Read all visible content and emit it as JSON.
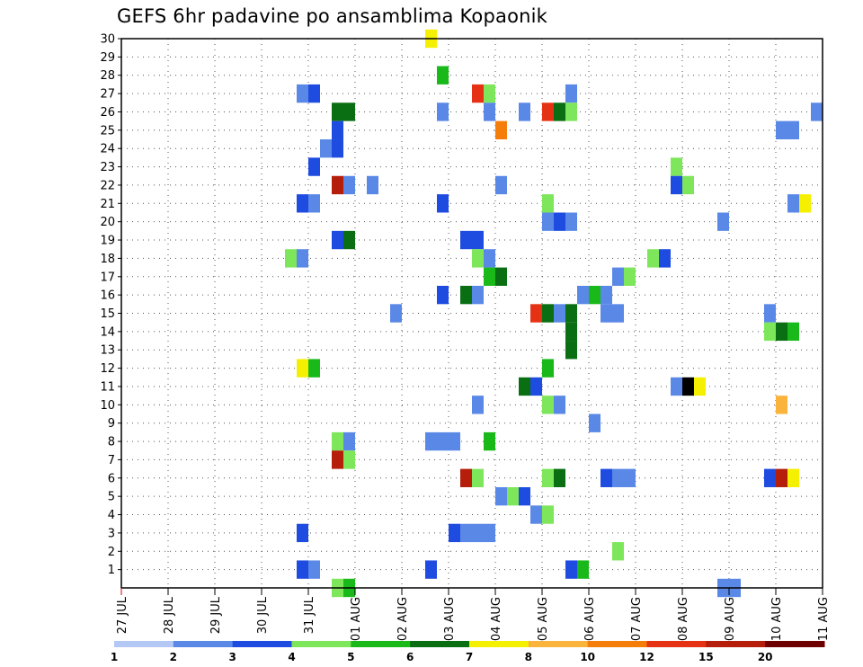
{
  "chart_data": {
    "type": "heatmap",
    "title": "GEFS 6hr padavine po ansamblima Kopaonik",
    "x_tick_labels": [
      "27 JUL",
      "28 JUL",
      "29 JUL",
      "30 JUL",
      "31 JUL",
      "01 AUG",
      "02 AUG",
      "03 AUG",
      "04 AUG",
      "05 AUG",
      "06 AUG",
      "07 AUG",
      "08 AUG",
      "09 AUG",
      "10 AUG",
      "11 AUG"
    ],
    "y_tick_labels": [
      "1",
      "2",
      "3",
      "4",
      "5",
      "6",
      "7",
      "8",
      "9",
      "10",
      "11",
      "12",
      "13",
      "14",
      "15",
      "16",
      "17",
      "18",
      "19",
      "20",
      "21",
      "22",
      "23",
      "24",
      "25",
      "26",
      "27",
      "28",
      "29",
      "30"
    ],
    "x_unit": "6-hour step",
    "x_range": [
      0,
      60
    ],
    "y_range": [
      0,
      30
    ],
    "grid": true,
    "legend_position": "bottom",
    "color_scale": {
      "labels": [
        "1",
        "2",
        "3",
        "4",
        "5",
        "6",
        "7",
        "8",
        "10",
        "12",
        "15",
        "20"
      ],
      "colors": [
        "#b4c8f5",
        "#5a88e6",
        "#1e4be0",
        "#7ee65a",
        "#19b919",
        "#0a6e12",
        "#f5f000",
        "#fab43c",
        "#f57d0a",
        "#e63214",
        "#b41e0a",
        "#6e0000"
      ]
    },
    "cells": [
      {
        "member": 30,
        "step": 26.5,
        "level": 6
      },
      {
        "member": 28,
        "step": 27.5,
        "level": 4
      },
      {
        "member": 27,
        "step": 15.5,
        "level": 1
      },
      {
        "member": 27,
        "step": 16.5,
        "level": 2
      },
      {
        "member": 27,
        "step": 30.5,
        "level": 9
      },
      {
        "member": 27,
        "step": 31.5,
        "level": 3
      },
      {
        "member": 27,
        "step": 38.5,
        "level": 1
      },
      {
        "member": 26,
        "step": 18.5,
        "level": 5
      },
      {
        "member": 26,
        "step": 19.5,
        "level": 5
      },
      {
        "member": 26,
        "step": 27.5,
        "level": 1
      },
      {
        "member": 26,
        "step": 31.5,
        "level": 1
      },
      {
        "member": 26,
        "step": 34.5,
        "level": 1
      },
      {
        "member": 26,
        "step": 36.5,
        "level": 9
      },
      {
        "member": 26,
        "step": 37.5,
        "level": 5
      },
      {
        "member": 26,
        "step": 38.5,
        "level": 3
      },
      {
        "member": 26,
        "step": 59.5,
        "level": 1
      },
      {
        "member": 25,
        "step": 18.5,
        "level": 2
      },
      {
        "member": 25,
        "step": 32.5,
        "level": 8
      },
      {
        "member": 25,
        "step": 56.5,
        "level": 1
      },
      {
        "member": 25,
        "step": 57.5,
        "level": 1
      },
      {
        "member": 24,
        "step": 17.5,
        "level": 1
      },
      {
        "member": 24,
        "step": 18.5,
        "level": 2
      },
      {
        "member": 23,
        "step": 16.5,
        "level": 2
      },
      {
        "member": 23,
        "step": 47.5,
        "level": 3
      },
      {
        "member": 22,
        "step": 18.5,
        "level": 10
      },
      {
        "member": 22,
        "step": 19.5,
        "level": 1
      },
      {
        "member": 22,
        "step": 21.5,
        "level": 1
      },
      {
        "member": 22,
        "step": 32.5,
        "level": 1
      },
      {
        "member": 22,
        "step": 47.5,
        "level": 2
      },
      {
        "member": 22,
        "step": 48.5,
        "level": 3
      },
      {
        "member": 21,
        "step": 15.5,
        "level": 2
      },
      {
        "member": 21,
        "step": 16.5,
        "level": 1
      },
      {
        "member": 21,
        "step": 27.5,
        "level": 2
      },
      {
        "member": 21,
        "step": 36.5,
        "level": 3
      },
      {
        "member": 21,
        "step": 57.5,
        "level": 1
      },
      {
        "member": 21,
        "step": 58.5,
        "level": 6
      },
      {
        "member": 20,
        "step": 36.5,
        "level": 1
      },
      {
        "member": 20,
        "step": 37.5,
        "level": 2
      },
      {
        "member": 20,
        "step": 38.5,
        "level": 1
      },
      {
        "member": 20,
        "step": 51.5,
        "level": 1
      },
      {
        "member": 19,
        "step": 18.5,
        "level": 2
      },
      {
        "member": 19,
        "step": 19.5,
        "level": 5
      },
      {
        "member": 19,
        "step": 29.5,
        "level": 2
      },
      {
        "member": 19,
        "step": 30.5,
        "level": 2
      },
      {
        "member": 18,
        "step": 14.5,
        "level": 3
      },
      {
        "member": 18,
        "step": 15.5,
        "level": 1
      },
      {
        "member": 18,
        "step": 30.5,
        "level": 3
      },
      {
        "member": 18,
        "step": 31.5,
        "level": 1
      },
      {
        "member": 18,
        "step": 45.5,
        "level": 3
      },
      {
        "member": 18,
        "step": 46.5,
        "level": 2
      },
      {
        "member": 17,
        "step": 31.5,
        "level": 4
      },
      {
        "member": 17,
        "step": 32.5,
        "level": 5
      },
      {
        "member": 17,
        "step": 42.5,
        "level": 1
      },
      {
        "member": 17,
        "step": 43.5,
        "level": 3
      },
      {
        "member": 16,
        "step": 27.5,
        "level": 2
      },
      {
        "member": 16,
        "step": 29.5,
        "level": 5
      },
      {
        "member": 16,
        "step": 30.5,
        "level": 1
      },
      {
        "member": 16,
        "step": 39.5,
        "level": 1
      },
      {
        "member": 16,
        "step": 40.5,
        "level": 4
      },
      {
        "member": 16,
        "step": 41.5,
        "level": 1
      },
      {
        "member": 15,
        "step": 23.5,
        "level": 1
      },
      {
        "member": 15,
        "step": 35.5,
        "level": 9
      },
      {
        "member": 15,
        "step": 36.5,
        "level": 5
      },
      {
        "member": 15,
        "step": 37.5,
        "level": 1
      },
      {
        "member": 15,
        "step": 38.5,
        "level": 5
      },
      {
        "member": 15,
        "step": 41.5,
        "level": 1
      },
      {
        "member": 15,
        "step": 42.5,
        "level": 1
      },
      {
        "member": 15,
        "step": 55.5,
        "level": 1
      },
      {
        "member": 14,
        "step": 38.5,
        "level": 5
      },
      {
        "member": 14,
        "step": 55.5,
        "level": 3
      },
      {
        "member": 14,
        "step": 56.5,
        "level": 5
      },
      {
        "member": 14,
        "step": 57.5,
        "level": 4
      },
      {
        "member": 13,
        "step": 38.5,
        "level": 5
      },
      {
        "member": 12,
        "step": 15.5,
        "level": 6
      },
      {
        "member": 12,
        "step": 16.5,
        "level": 4
      },
      {
        "member": 12,
        "step": 36.5,
        "level": 4
      },
      {
        "member": 11,
        "step": 34.5,
        "level": 5
      },
      {
        "member": 11,
        "step": 35.5,
        "level": 2
      },
      {
        "member": 11,
        "step": 47.5,
        "level": 1
      },
      {
        "member": 11,
        "step": 48.5,
        "level": 12
      },
      {
        "member": 11,
        "step": 49.5,
        "level": 6
      },
      {
        "member": 10,
        "step": 30.5,
        "level": 1
      },
      {
        "member": 10,
        "step": 36.5,
        "level": 3
      },
      {
        "member": 10,
        "step": 37.5,
        "level": 1
      },
      {
        "member": 10,
        "step": 56.5,
        "level": 7
      },
      {
        "member": 9,
        "step": 40.5,
        "level": 1
      },
      {
        "member": 8,
        "step": 18.5,
        "level": 3
      },
      {
        "member": 8,
        "step": 19.5,
        "level": 1
      },
      {
        "member": 8,
        "step": 26.5,
        "level": 1
      },
      {
        "member": 8,
        "step": 27.5,
        "level": 1
      },
      {
        "member": 8,
        "step": 28.5,
        "level": 1
      },
      {
        "member": 8,
        "step": 31.5,
        "level": 4
      },
      {
        "member": 7,
        "step": 18.5,
        "level": 10
      },
      {
        "member": 7,
        "step": 19.5,
        "level": 3
      },
      {
        "member": 6,
        "step": 29.5,
        "level": 10
      },
      {
        "member": 6,
        "step": 30.5,
        "level": 3
      },
      {
        "member": 6,
        "step": 36.5,
        "level": 3
      },
      {
        "member": 6,
        "step": 37.5,
        "level": 5
      },
      {
        "member": 6,
        "step": 41.5,
        "level": 2
      },
      {
        "member": 6,
        "step": 42.5,
        "level": 1
      },
      {
        "member": 6,
        "step": 43.5,
        "level": 1
      },
      {
        "member": 6,
        "step": 55.5,
        "level": 2
      },
      {
        "member": 6,
        "step": 56.5,
        "level": 10
      },
      {
        "member": 6,
        "step": 57.5,
        "level": 6
      },
      {
        "member": 5,
        "step": 32.5,
        "level": 1
      },
      {
        "member": 5,
        "step": 33.5,
        "level": 3
      },
      {
        "member": 5,
        "step": 34.5,
        "level": 2
      },
      {
        "member": 4,
        "step": 35.5,
        "level": 1
      },
      {
        "member": 4,
        "step": 36.5,
        "level": 3
      },
      {
        "member": 3,
        "step": 15.5,
        "level": 2
      },
      {
        "member": 3,
        "step": 28.5,
        "level": 2
      },
      {
        "member": 3,
        "step": 29.5,
        "level": 1
      },
      {
        "member": 3,
        "step": 30.5,
        "level": 1
      },
      {
        "member": 3,
        "step": 31.5,
        "level": 1
      },
      {
        "member": 2,
        "step": 42.5,
        "level": 3
      },
      {
        "member": 1,
        "step": 15.5,
        "level": 2
      },
      {
        "member": 1,
        "step": 16.5,
        "level": 1
      },
      {
        "member": 1,
        "step": 26.5,
        "level": 2
      },
      {
        "member": 1,
        "step": 38.5,
        "level": 2
      },
      {
        "member": 1,
        "step": 39.5,
        "level": 4
      },
      {
        "member": 0,
        "step": 18.5,
        "level": 3
      },
      {
        "member": 0,
        "step": 19.5,
        "level": 4
      },
      {
        "member": 0,
        "step": 51.5,
        "level": 1
      },
      {
        "member": 0,
        "step": 52.5,
        "level": 1
      }
    ]
  }
}
